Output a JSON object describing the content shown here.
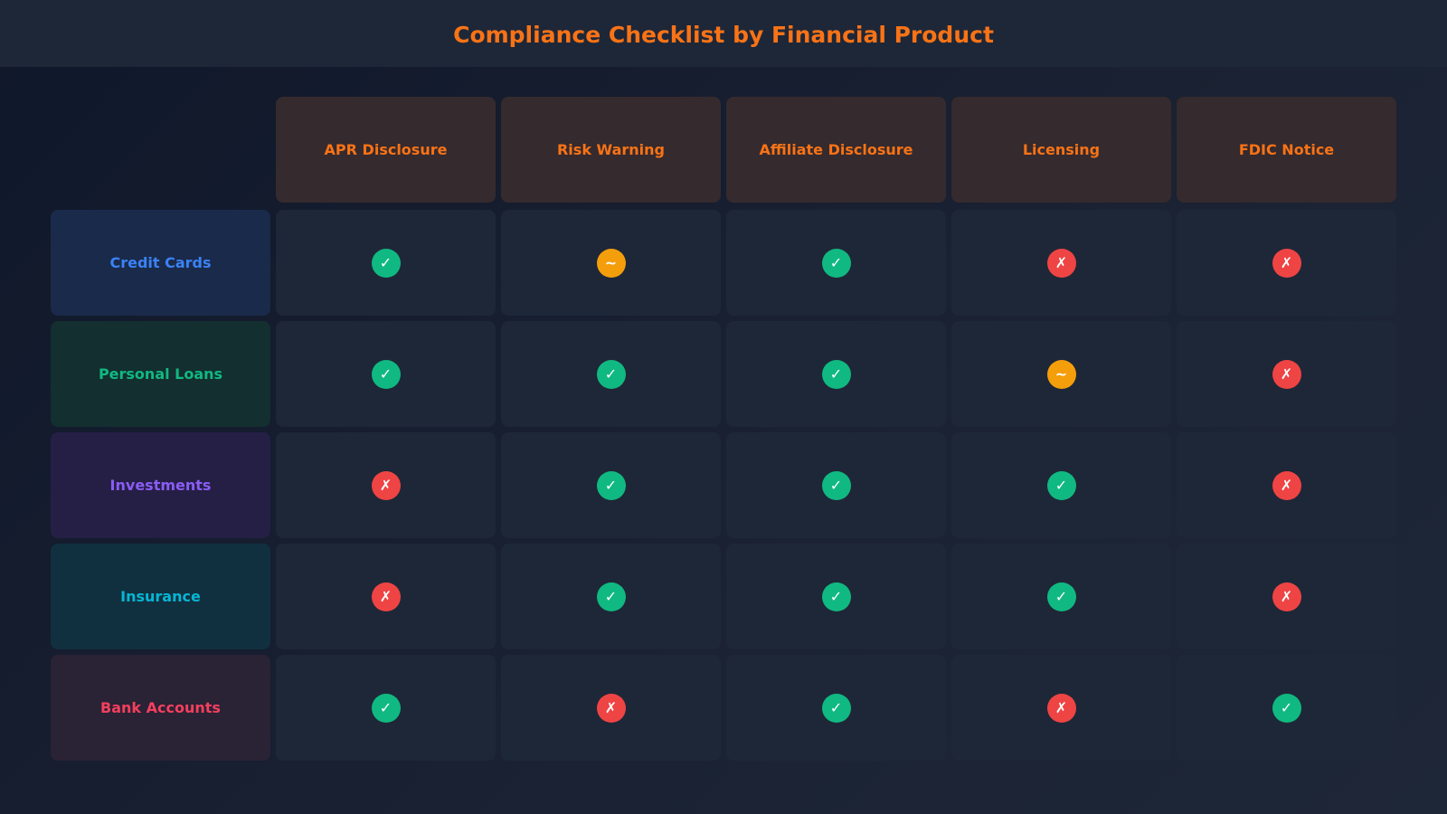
{
  "header": {
    "title": "Compliance Checklist by Financial Product"
  },
  "table": {
    "columns": [
      "APR Disclosure",
      "Risk Warning",
      "Affiliate Disclosure",
      "Licensing",
      "FDIC Notice"
    ],
    "rows": [
      {
        "label": "Credit Cards",
        "color": "#3b82f6",
        "background": "#1a2a4a",
        "cells": [
          {
            "symbol": "✓",
            "color": "#10b981"
          },
          {
            "symbol": "~",
            "color": "#f59e0b"
          },
          {
            "symbol": "✓",
            "color": "#10b981"
          },
          {
            "symbol": "✗",
            "color": "#ef4444"
          },
          {
            "symbol": "✗",
            "color": "#ef4444"
          }
        ]
      },
      {
        "label": "Personal Loans",
        "color": "#10b981",
        "background": "#132f30",
        "cells": [
          {
            "symbol": "✓",
            "color": "#10b981"
          },
          {
            "symbol": "✓",
            "color": "#10b981"
          },
          {
            "symbol": "✓",
            "color": "#10b981"
          },
          {
            "symbol": "~",
            "color": "#f59e0b"
          },
          {
            "symbol": "✗",
            "color": "#ef4444"
          }
        ]
      },
      {
        "label": "Investments",
        "color": "#8b5cf6",
        "background": "#251f45",
        "cells": [
          {
            "symbol": "✗",
            "color": "#ef4444"
          },
          {
            "symbol": "✓",
            "color": "#10b981"
          },
          {
            "symbol": "✓",
            "color": "#10b981"
          },
          {
            "symbol": "✓",
            "color": "#10b981"
          },
          {
            "symbol": "✗",
            "color": "#ef4444"
          }
        ]
      },
      {
        "label": "Insurance",
        "color": "#06b6d4",
        "background": "#11303f",
        "cells": [
          {
            "symbol": "✗",
            "color": "#ef4444"
          },
          {
            "symbol": "✓",
            "color": "#10b981"
          },
          {
            "symbol": "✓",
            "color": "#10b981"
          },
          {
            "symbol": "✓",
            "color": "#10b981"
          },
          {
            "symbol": "✗",
            "color": "#ef4444"
          }
        ]
      },
      {
        "label": "Bank Accounts",
        "color": "#f43f5e",
        "background": "#2a2235",
        "cells": [
          {
            "symbol": "✓",
            "color": "#10b981"
          },
          {
            "symbol": "✗",
            "color": "#ef4444"
          },
          {
            "symbol": "✓",
            "color": "#10b981"
          },
          {
            "symbol": "✗",
            "color": "#ef4444"
          },
          {
            "symbol": "✓",
            "color": "#10b981"
          }
        ]
      }
    ]
  }
}
